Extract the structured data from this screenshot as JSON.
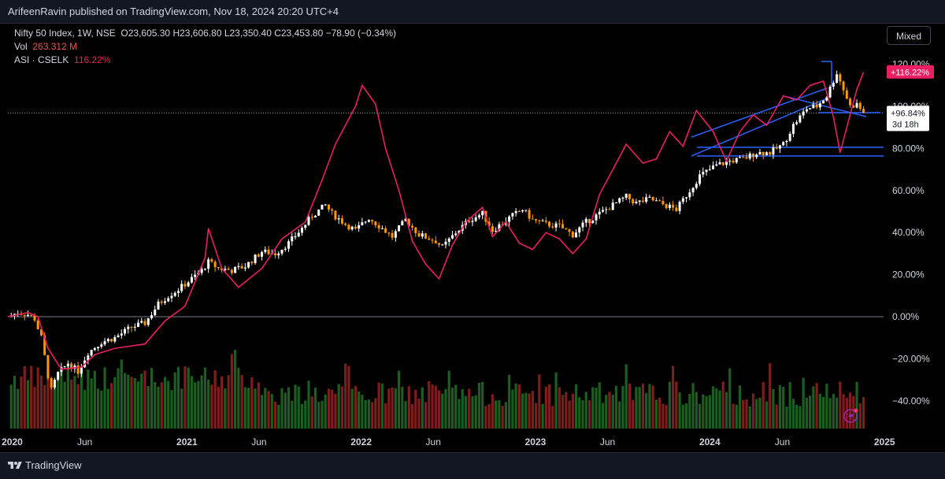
{
  "header": {
    "publisher_line": "ArifeenRavin published on TradingView.com, Nov 18, 2024 20:20 UTC+4"
  },
  "legend": {
    "symbol": "Nifty 50 Index, 1W, NSE",
    "ohlc": "O23,605.30 H23,606.80 L23,350.40 C23,453.80 −78.90 (−0.34%)",
    "vol_label": "Vol",
    "vol_value": "263.312 M",
    "asi_label": "ASI · CSELK",
    "asi_value": "116.22%"
  },
  "controls": {
    "scale_mode": "Mixed"
  },
  "footer": {
    "brand": "TradingView"
  },
  "badges": {
    "asi": "+116.22%",
    "nifty": "+96.84%",
    "countdown": "3d 18h"
  },
  "colors": {
    "background": "#000000",
    "up_candle": "#ffffff",
    "down_candle": "#ff9800",
    "asi_line": "#e91e63",
    "volume_up": "#1b5e20",
    "volume_down": "#7f1d1d",
    "trendline": "#2962ff",
    "zero_line": "#787b86"
  },
  "chart_data": {
    "type": "line",
    "y_axis": {
      "unit": "percent",
      "range": [
        -50,
        125
      ],
      "ticks": [
        {
          "value": 120,
          "label": "120.00%"
        },
        {
          "value": 100,
          "label": "100.00%"
        },
        {
          "value": 80,
          "label": "80.00%"
        },
        {
          "value": 60,
          "label": "60.00%"
        },
        {
          "value": 40,
          "label": "40.00%"
        },
        {
          "value": 20,
          "label": "20.00%"
        },
        {
          "value": 0,
          "label": "0.00%"
        },
        {
          "value": -20,
          "label": "−20.00%"
        },
        {
          "value": -40,
          "label": "−40.00%"
        }
      ]
    },
    "x_axis": {
      "range": [
        "2019-12-23",
        "2024-12-30"
      ],
      "ticks": [
        {
          "date": "2020-01-01",
          "label": "2020",
          "bold": true
        },
        {
          "date": "2020-06-01",
          "label": "Jun",
          "bold": false
        },
        {
          "date": "2021-01-01",
          "label": "2021",
          "bold": true
        },
        {
          "date": "2021-06-01",
          "label": "Jun",
          "bold": false
        },
        {
          "date": "2022-01-01",
          "label": "2022",
          "bold": true
        },
        {
          "date": "2022-06-01",
          "label": "Jun",
          "bold": false
        },
        {
          "date": "2023-01-01",
          "label": "2023",
          "bold": true
        },
        {
          "date": "2023-06-01",
          "label": "Jun",
          "bold": false
        },
        {
          "date": "2024-01-01",
          "label": "2024",
          "bold": true
        },
        {
          "date": "2024-06-01",
          "label": "Jun",
          "bold": false
        },
        {
          "date": "2025-01-01",
          "label": "2025",
          "bold": true
        }
      ]
    },
    "series": [
      {
        "name": "Nifty 50 Index",
        "style": "candles",
        "points": [
          [
            "2019-12-23",
            0
          ],
          [
            "2020-01-13",
            2
          ],
          [
            "2020-02-03",
            1
          ],
          [
            "2020-02-17",
            -1
          ],
          [
            "2020-03-02",
            -10
          ],
          [
            "2020-03-16",
            -28
          ],
          [
            "2020-03-23",
            -35
          ],
          [
            "2020-04-06",
            -27
          ],
          [
            "2020-04-27",
            -22
          ],
          [
            "2020-05-18",
            -26
          ],
          [
            "2020-06-08",
            -17
          ],
          [
            "2020-07-06",
            -12
          ],
          [
            "2020-08-03",
            -10
          ],
          [
            "2020-09-07",
            -5
          ],
          [
            "2020-10-05",
            -3
          ],
          [
            "2020-11-02",
            6
          ],
          [
            "2020-11-23",
            10
          ],
          [
            "2020-12-14",
            13
          ],
          [
            "2021-01-11",
            18
          ],
          [
            "2021-02-01",
            22
          ],
          [
            "2021-02-15",
            26
          ],
          [
            "2021-03-08",
            23
          ],
          [
            "2021-04-05",
            22
          ],
          [
            "2021-05-03",
            24
          ],
          [
            "2021-06-07",
            31
          ],
          [
            "2021-07-05",
            30
          ],
          [
            "2021-08-02",
            35
          ],
          [
            "2021-08-30",
            42
          ],
          [
            "2021-09-20",
            48
          ],
          [
            "2021-10-18",
            53
          ],
          [
            "2021-11-01",
            49
          ],
          [
            "2021-11-29",
            44
          ],
          [
            "2021-12-20",
            41
          ],
          [
            "2022-01-17",
            47
          ],
          [
            "2022-02-14",
            42
          ],
          [
            "2022-03-07",
            38
          ],
          [
            "2022-04-04",
            46
          ],
          [
            "2022-05-02",
            39
          ],
          [
            "2022-06-06",
            36
          ],
          [
            "2022-06-20",
            33
          ],
          [
            "2022-07-18",
            40
          ],
          [
            "2022-08-15",
            46
          ],
          [
            "2022-09-12",
            49
          ],
          [
            "2022-10-03",
            41
          ],
          [
            "2022-11-07",
            47
          ],
          [
            "2022-12-05",
            51
          ],
          [
            "2022-12-26",
            46
          ],
          [
            "2023-01-23",
            44
          ],
          [
            "2023-02-20",
            43
          ],
          [
            "2023-03-20",
            39
          ],
          [
            "2023-04-17",
            45
          ],
          [
            "2023-05-15",
            49
          ],
          [
            "2023-06-12",
            53
          ],
          [
            "2023-07-10",
            57
          ],
          [
            "2023-07-31",
            54
          ],
          [
            "2023-08-28",
            56
          ],
          [
            "2023-09-18",
            54
          ],
          [
            "2023-10-23",
            51
          ],
          [
            "2023-11-20",
            60
          ],
          [
            "2023-12-11",
            67
          ],
          [
            "2024-01-15",
            72
          ],
          [
            "2024-02-12",
            74
          ],
          [
            "2024-03-11",
            75
          ],
          [
            "2024-04-08",
            78
          ],
          [
            "2024-05-06",
            78
          ],
          [
            "2024-06-03",
            82
          ],
          [
            "2024-06-24",
            91
          ],
          [
            "2024-07-22",
            99
          ],
          [
            "2024-08-12",
            100
          ],
          [
            "2024-09-02",
            105
          ],
          [
            "2024-09-23",
            116
          ],
          [
            "2024-10-07",
            108
          ],
          [
            "2024-10-21",
            100
          ],
          [
            "2024-11-04",
            101
          ],
          [
            "2024-11-18",
            96.84
          ]
        ]
      },
      {
        "name": "ASI · CSELK",
        "style": "line",
        "points": [
          [
            "2019-12-23",
            0
          ],
          [
            "2020-02-03",
            2
          ],
          [
            "2020-02-24",
            0
          ],
          [
            "2020-03-16",
            -15
          ],
          [
            "2020-04-13",
            -25
          ],
          [
            "2020-05-25",
            -24
          ],
          [
            "2020-06-22",
            -18
          ],
          [
            "2020-08-03",
            -15
          ],
          [
            "2020-10-05",
            -13
          ],
          [
            "2020-11-16",
            -2
          ],
          [
            "2020-12-28",
            5
          ],
          [
            "2021-02-08",
            28
          ],
          [
            "2021-02-15",
            42
          ],
          [
            "2021-03-15",
            23
          ],
          [
            "2021-04-19",
            14
          ],
          [
            "2021-06-07",
            23
          ],
          [
            "2021-07-19",
            37
          ],
          [
            "2021-09-06",
            45
          ],
          [
            "2021-10-11",
            65
          ],
          [
            "2021-11-08",
            82
          ],
          [
            "2021-12-20",
            100
          ],
          [
            "2022-01-03",
            110
          ],
          [
            "2022-01-31",
            101
          ],
          [
            "2022-02-21",
            80
          ],
          [
            "2022-03-21",
            60
          ],
          [
            "2022-04-18",
            36
          ],
          [
            "2022-05-16",
            25
          ],
          [
            "2022-06-13",
            18
          ],
          [
            "2022-07-11",
            34
          ],
          [
            "2022-08-08",
            45
          ],
          [
            "2022-09-12",
            52
          ],
          [
            "2022-10-03",
            38
          ],
          [
            "2022-10-31",
            45
          ],
          [
            "2022-11-28",
            35
          ],
          [
            "2022-12-26",
            32
          ],
          [
            "2023-01-23",
            40
          ],
          [
            "2023-02-20",
            37
          ],
          [
            "2023-03-20",
            30
          ],
          [
            "2023-04-17",
            37
          ],
          [
            "2023-05-15",
            58
          ],
          [
            "2023-06-12",
            70
          ],
          [
            "2023-07-10",
            82
          ],
          [
            "2023-08-14",
            73
          ],
          [
            "2023-09-11",
            75
          ],
          [
            "2023-10-09",
            88
          ],
          [
            "2023-11-06",
            81
          ],
          [
            "2023-12-04",
            98
          ],
          [
            "2024-01-08",
            88
          ],
          [
            "2024-02-05",
            74
          ],
          [
            "2024-03-04",
            88
          ],
          [
            "2024-04-01",
            96
          ],
          [
            "2024-04-29",
            91
          ],
          [
            "2024-06-03",
            105
          ],
          [
            "2024-07-01",
            103
          ],
          [
            "2024-07-29",
            110
          ],
          [
            "2024-08-26",
            112
          ],
          [
            "2024-09-16",
            95
          ],
          [
            "2024-09-30",
            78
          ],
          [
            "2024-10-14",
            90
          ],
          [
            "2024-11-04",
            108
          ],
          [
            "2024-11-18",
            116.22
          ]
        ]
      }
    ],
    "price_line": 96.84
  }
}
